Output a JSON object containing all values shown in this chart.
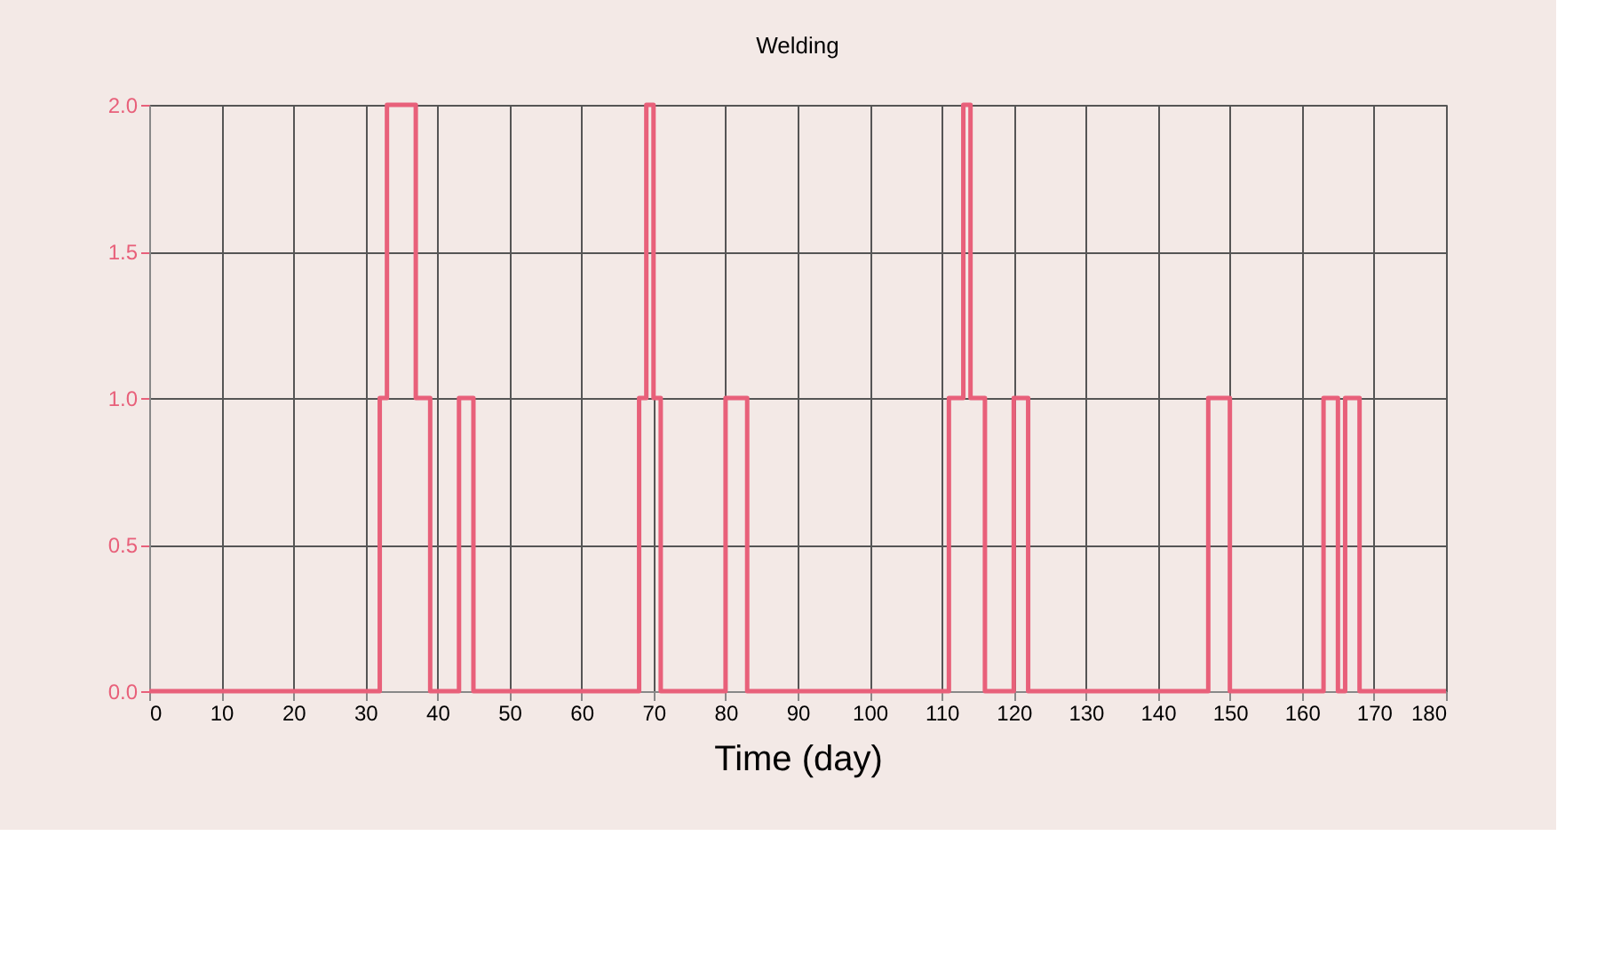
{
  "chart_data": {
    "type": "step",
    "title": "Welding",
    "xlabel": "Time (day)",
    "x": [
      0,
      32,
      33,
      37,
      39,
      43,
      45,
      68,
      69,
      70,
      71,
      80,
      83,
      111,
      113,
      114,
      116,
      120,
      122,
      147,
      150,
      163,
      165,
      166,
      168,
      180
    ],
    "series": [
      {
        "color": "#e8607a",
        "values": [
          0,
          1,
          2,
          1,
          0,
          1,
          0,
          1,
          2,
          1,
          0,
          1,
          0,
          1,
          2,
          1,
          0,
          1,
          0,
          1,
          0,
          1,
          0,
          1,
          0,
          0
        ]
      }
    ],
    "xlim": [
      0,
      180
    ],
    "xticks": [
      0,
      10,
      20,
      30,
      40,
      50,
      60,
      70,
      80,
      90,
      100,
      110,
      120,
      130,
      140,
      150,
      160,
      170,
      180
    ],
    "ylim": [
      0,
      2
    ],
    "yticks": [
      {
        "value": 0,
        "label": "0.0"
      },
      {
        "value": 0.5,
        "label": "0.5"
      },
      {
        "value": 1,
        "label": "1.0"
      },
      {
        "value": 1.5,
        "label": "1.5"
      },
      {
        "value": 2,
        "label": "2.0"
      }
    ],
    "grid": true,
    "marker": "none",
    "line_style": "solid"
  }
}
